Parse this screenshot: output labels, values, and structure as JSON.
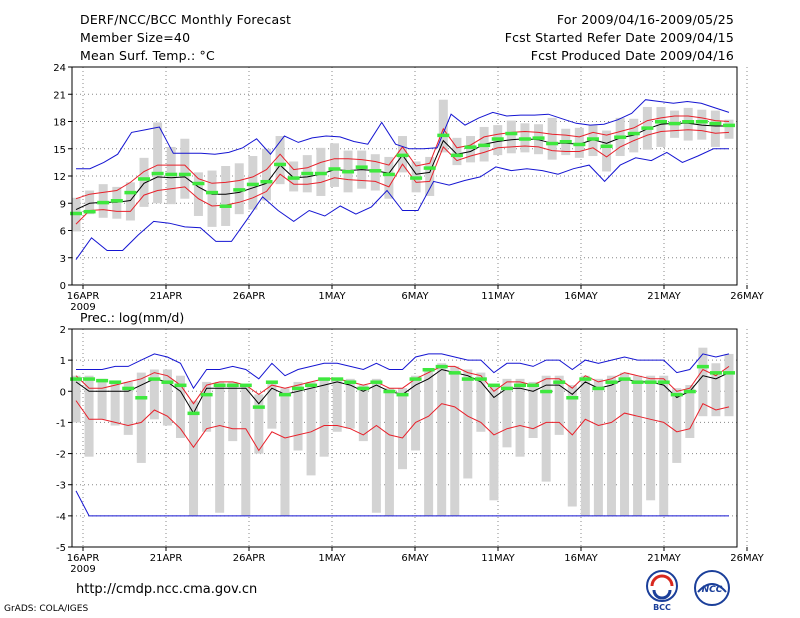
{
  "header": {
    "title": "DERF/NCC/BCC Monthly Forecast",
    "member_size": "Member Size=40",
    "variable1": "Mean Surf. Temp.: °C",
    "period": "For 2009/04/16-2009/05/25",
    "started": "Fcst Started Refer Date 2009/04/15",
    "produced": "Fcst Produced Date 2009/04/16"
  },
  "footer": {
    "url": "http://cmdp.ncc.cma.gov.cn",
    "grads": "GrADS: COLA/IGES",
    "logo1_text": "BCC",
    "logo2_text": "NCC"
  },
  "colors": {
    "box": "#d3d3d3",
    "mean": "#000000",
    "stdev": "#e8202a",
    "range": "#1515d2",
    "member": "#3ee83e",
    "grid": "#888888"
  },
  "chart_data": [
    {
      "type": "box-plume",
      "title": "Mean Surf. Temp.: °C",
      "x_tick_labels": [
        "16APR",
        "21APR",
        "26APR",
        "1MAY",
        "6MAY",
        "11MAY",
        "16MAY",
        "21MAY",
        "26MAY"
      ],
      "x_year_label": "2009",
      "ylim": [
        0,
        24
      ],
      "yticks": [
        0,
        3,
        6,
        9,
        12,
        15,
        18,
        21,
        24
      ],
      "days": 40,
      "series": [
        {
          "name": "ensemble mean",
          "values": [
            8.3,
            9,
            9.1,
            9.1,
            9.3,
            11.2,
            11.9,
            11.8,
            11.9,
            10.8,
            10,
            10,
            10.2,
            10.7,
            11.2,
            13.2,
            11.8,
            11.9,
            12.2,
            12.7,
            12.6,
            12.7,
            12.6,
            12.3,
            14.3,
            12.2,
            12.4,
            15.9,
            14.4,
            14.7,
            15.5,
            15.8,
            16,
            16.1,
            16,
            15.6,
            15.6,
            15.5,
            16,
            15.6,
            16.2,
            16.5,
            17.2,
            17.7,
            17.8,
            17.8,
            17.6,
            17.5,
            17.5
          ]
        },
        {
          "name": "mean + stdev",
          "values": [
            9.5,
            10,
            10.2,
            10.4,
            11.3,
            12.5,
            13.2,
            13.2,
            13.2,
            11.7,
            11.2,
            11.3,
            11.5,
            11.9,
            12.7,
            14.4,
            12.7,
            12.9,
            13.5,
            13.9,
            13.9,
            13.8,
            13.6,
            13.2,
            15.2,
            13.1,
            13.4,
            17.2,
            15.1,
            15.4,
            16.3,
            16.6,
            16.8,
            16.9,
            16.8,
            16.6,
            16.5,
            16.3,
            16.8,
            16.5,
            16.9,
            17.3,
            18.1,
            18.4,
            18.6,
            18.6,
            18.4,
            18.1,
            18
          ]
        },
        {
          "name": "mean - stdev",
          "values": [
            6.7,
            8.2,
            8.3,
            8.1,
            8.1,
            9.9,
            10.4,
            10.6,
            10.8,
            9.5,
            8.7,
            8.8,
            9.1,
            9.6,
            10.3,
            12.2,
            11.1,
            11.1,
            11.3,
            11.8,
            11.6,
            11.5,
            11.4,
            10.8,
            13.3,
            11.3,
            11.4,
            15.2,
            13.7,
            14.2,
            14.6,
            15.1,
            15.2,
            15.3,
            15.2,
            14.8,
            14.7,
            14.7,
            15.1,
            14.1,
            15.2,
            15.9,
            16.5,
            16.9,
            17,
            17.1,
            17,
            16.7,
            16.8
          ]
        },
        {
          "name": "ensemble max",
          "values": [
            12.8,
            12.8,
            13.5,
            14.4,
            16.8,
            17.1,
            17.4,
            14.5,
            14.5,
            14.5,
            14.4,
            14.6,
            15.1,
            16.1,
            14.4,
            16.4,
            15.7,
            16.2,
            16.4,
            16.3,
            15.8,
            15.5,
            17.9,
            15.5,
            15,
            15,
            15.1,
            18.8,
            17.6,
            18.4,
            19,
            18.6,
            18.7,
            18.7,
            18.8,
            18.3,
            17.8,
            17.6,
            17.7,
            18.2,
            18.9,
            20.4,
            20.2,
            20,
            20.2,
            20,
            19.5,
            19
          ]
        },
        {
          "name": "ensemble min",
          "values": [
            2.8,
            5.2,
            3.8,
            3.8,
            5.5,
            7,
            6.8,
            6.4,
            6.3,
            4.8,
            4.8,
            7.2,
            9.7,
            8.2,
            7,
            8.2,
            7.6,
            8.7,
            7.8,
            8.6,
            10.4,
            8.2,
            8.2,
            11.4,
            11,
            11.5,
            11.9,
            13,
            12.6,
            12.8,
            12.6,
            12.2,
            12.8,
            13.2,
            11.4,
            13.2,
            14,
            13.7,
            14.6,
            13.5,
            14.2,
            15,
            15
          ]
        },
        {
          "name": "members",
          "values": [
            7.9,
            8.1,
            9.1,
            9.3,
            10.2,
            11.7,
            12.3,
            12.2,
            12.2,
            11.2,
            10.2,
            8.7,
            10.5,
            11.1,
            11.4,
            13.3,
            11.8,
            12.3,
            12.3,
            12.8,
            12.5,
            13,
            12.6,
            12.2,
            14.3,
            11.8,
            12.9,
            16.5,
            14.3,
            15.2,
            15.4,
            16.1,
            16.7,
            16.1,
            16.2,
            15.6,
            15.8,
            15.5,
            16.1,
            15.3,
            16.3,
            16.7,
            17.3,
            18,
            17.8,
            18,
            18,
            17.8,
            17.6
          ]
        }
      ],
      "box_high": [
        9.6,
        10.4,
        11.1,
        10.8,
        11.3,
        14,
        17.9,
        15.2,
        16.1,
        12.4,
        12.6,
        13.1,
        13.4,
        14.2,
        15,
        16.4,
        13.6,
        14.3,
        15.1,
        15.6,
        14.8,
        14.8,
        14.4,
        14.1,
        16.4,
        13.6,
        14.1,
        20.4,
        16.2,
        16.4,
        17.4,
        17.6,
        18.1,
        17.8,
        17.7,
        18.4,
        17.2,
        17.3,
        17.6,
        17,
        18.4,
        18.3,
        19.6,
        19.6,
        19.2,
        19.5,
        19.3,
        19.2,
        18.2
      ],
      "box_low": [
        5.9,
        7.8,
        7.4,
        7.3,
        7.1,
        8.6,
        9,
        8.9,
        9.5,
        7.6,
        6.4,
        6.5,
        7.8,
        8.3,
        9.3,
        11.1,
        10.3,
        10.2,
        9.8,
        10.8,
        10.2,
        10.6,
        10.4,
        9.5,
        12.4,
        10.2,
        9.8,
        14.6,
        13.2,
        13.5,
        13.6,
        14.3,
        14.5,
        14.6,
        14.4,
        13.8,
        14.3,
        14,
        14.2,
        12.5,
        14.2,
        14.6,
        14.9,
        15.2,
        16.2,
        15.9,
        16,
        15.2,
        16.1
      ]
    },
    {
      "type": "box-plume",
      "title": "Prec.: log(mm/d)",
      "x_tick_labels": [
        "16APR",
        "21APR",
        "26APR",
        "1MAY",
        "6MAY",
        "11MAY",
        "16MAY",
        "21MAY",
        "26MAY"
      ],
      "x_year_label": "2009",
      "ylim": [
        -5,
        2
      ],
      "yticks": [
        -5,
        -4,
        -3,
        -2,
        -1,
        0,
        1,
        2
      ],
      "days": 40,
      "series": [
        {
          "name": "ensemble mean",
          "values": [
            0.3,
            0,
            0,
            0,
            0,
            0.2,
            0.4,
            0.3,
            0,
            -0.7,
            0.1,
            0.1,
            0.1,
            0.1,
            -0.4,
            0.1,
            -0.1,
            0,
            0.1,
            0.2,
            0.3,
            0.2,
            0,
            0.2,
            0,
            -0.1,
            0.2,
            0.4,
            0.7,
            0.6,
            0.5,
            0.3,
            -0.2,
            0.1,
            0.1,
            0,
            0.2,
            0.2,
            -0.1,
            0.3,
            0.1,
            0.2,
            0.4,
            0.3,
            0.3,
            0.2,
            -0.2,
            0,
            0.5,
            0.4,
            0.6
          ]
        },
        {
          "name": "mean + stdev",
          "values": [
            0.5,
            0.1,
            0.1,
            0.2,
            0.3,
            0.4,
            0.6,
            0.5,
            0.2,
            -0.4,
            0.2,
            0.3,
            0.3,
            0.2,
            -0.1,
            0.2,
            0.1,
            0.2,
            0.3,
            0.4,
            0.4,
            0.3,
            0.2,
            0.3,
            0.1,
            0.1,
            0.4,
            0.6,
            0.8,
            0.8,
            0.6,
            0.5,
            0,
            0.3,
            0.3,
            0.2,
            0.4,
            0.4,
            0.1,
            0.5,
            0.3,
            0.4,
            0.6,
            0.5,
            0.4,
            0.4,
            0,
            0.1,
            0.7,
            0.5,
            0.8
          ]
        },
        {
          "name": "mean - stdev",
          "values": [
            -0.3,
            -0.9,
            -0.9,
            -1,
            -1.1,
            -1,
            -0.6,
            -0.8,
            -1.2,
            -1.8,
            -1.2,
            -1.1,
            -1.2,
            -1.2,
            -1.9,
            -1.3,
            -1.5,
            -1.4,
            -1.3,
            -1.1,
            -1.1,
            -1.2,
            -1.4,
            -1.1,
            -1.4,
            -1.5,
            -1,
            -0.8,
            -0.4,
            -0.5,
            -0.8,
            -1,
            -1.4,
            -1.2,
            -1.1,
            -1.2,
            -1,
            -1,
            -1.4,
            -0.9,
            -1.1,
            -1,
            -0.7,
            -0.8,
            -0.9,
            -1,
            -1.3,
            -1.2,
            -0.4,
            -0.6,
            -0.5
          ]
        },
        {
          "name": "ensemble max",
          "values": [
            0.7,
            0.7,
            0.7,
            0.8,
            0.8,
            1,
            1.2,
            1.1,
            0.9,
            0.1,
            0.7,
            0.7,
            0.8,
            0.7,
            0.4,
            0.9,
            0.5,
            0.7,
            0.8,
            0.9,
            0.9,
            0.8,
            0.7,
            0.9,
            0.7,
            0.7,
            1.1,
            1.2,
            1.2,
            1.1,
            1,
            1,
            0.6,
            0.9,
            0.9,
            0.8,
            1,
            1,
            0.7,
            1,
            0.9,
            1,
            1.1,
            1,
            1,
            1,
            0.6,
            0.7,
            1.2,
            1.1,
            1.2
          ]
        },
        {
          "name": "ensemble min",
          "values": [
            -3.2,
            -4,
            -4,
            -4,
            -4,
            -4,
            -4,
            -4,
            -4,
            -4,
            -4,
            -4,
            -4,
            -4,
            -4,
            -4,
            -4,
            -4,
            -4,
            -4,
            -4,
            -4,
            -4,
            -4,
            -4,
            -4,
            -4,
            -4,
            -4,
            -4,
            -4,
            -4,
            -4,
            -4,
            -4,
            -4,
            -4,
            -4,
            -4,
            -4,
            -4,
            -4,
            -4,
            -4,
            -4,
            -4,
            -4,
            -4,
            -4,
            -4,
            -4
          ]
        },
        {
          "name": "members",
          "values": [
            0.4,
            0.4,
            0.35,
            0.3,
            0.1,
            -0.2,
            0.4,
            0.3,
            0.2,
            -0.7,
            -0.1,
            0.2,
            0.2,
            0.2,
            -0.5,
            0.3,
            -0.1,
            0.1,
            0.2,
            0.4,
            0.4,
            0.3,
            0.1,
            0.3,
            0,
            -0.1,
            0.4,
            0.7,
            0.8,
            0.6,
            0.4,
            0.4,
            0.2,
            0.1,
            0.2,
            0.2,
            0,
            0.3,
            -0.2,
            0.4,
            0.1,
            0.3,
            0.4,
            0.3,
            0.3,
            0.3,
            -0.1,
            0,
            0.8,
            0.6,
            0.6
          ]
        }
      ],
      "box_high": [
        0.5,
        0.5,
        0.4,
        0.3,
        0.3,
        0.6,
        0.7,
        0.7,
        0.5,
        -0.3,
        0.3,
        0.3,
        0.3,
        0.2,
        -0.1,
        0.3,
        0.1,
        0.3,
        0.3,
        0.4,
        0.4,
        0.4,
        0.2,
        0.4,
        0.1,
        0.1,
        0.5,
        0.7,
        0.9,
        0.8,
        0.7,
        0.6,
        0.2,
        0.4,
        0.4,
        0.3,
        0.5,
        0.5,
        0.2,
        0.5,
        0.4,
        0.5,
        0.6,
        0.5,
        0.5,
        0.5,
        0.1,
        0.2,
        1.4,
        0.9,
        1.2
      ],
      "box_low": [
        -1,
        -2.1,
        -0.9,
        -1.1,
        -1.4,
        -2.3,
        -0.9,
        -1.1,
        -1.5,
        -4,
        -1.3,
        -3.9,
        -1.6,
        -4,
        -2,
        -1.2,
        -4,
        -1.9,
        -2.7,
        -2.1,
        -1.3,
        -1.2,
        -1.6,
        -3.9,
        -4,
        -2.5,
        -1.9,
        -4,
        -4,
        -4,
        -2.8,
        -1.3,
        -3.5,
        -1.8,
        -2.1,
        -1.5,
        -2.9,
        -1.4,
        -3.7,
        -4,
        -4,
        -4,
        -4,
        -4,
        -3.5,
        -4,
        -2.3,
        -1.5,
        -0.8,
        -0.8,
        -0.8
      ]
    }
  ]
}
